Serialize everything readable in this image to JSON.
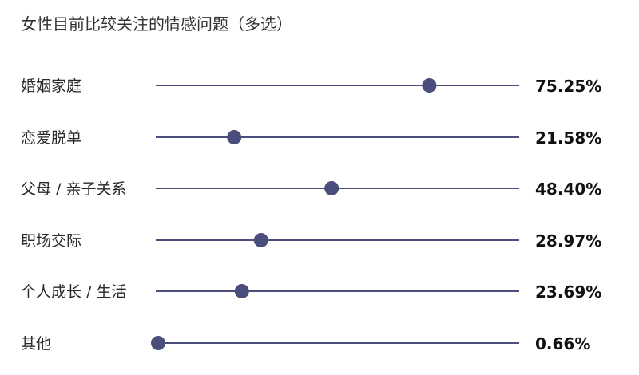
{
  "chart_data": {
    "type": "dot",
    "title": "女性目前比较关注的情感问题（多选）",
    "categories": [
      "婚姻家庭",
      "恋爱脱单",
      "父母 / 亲子关系",
      "职场交际",
      "个人成长 / 生活",
      "其他"
    ],
    "values": [
      75.25,
      21.58,
      48.4,
      28.97,
      23.69,
      0.66
    ],
    "value_labels": [
      "75.25%",
      "21.58%",
      "48.40%",
      "28.97%",
      "23.69%",
      "0.66%"
    ],
    "xlim": [
      0,
      100
    ],
    "unit": "%",
    "grid": false,
    "legend": "none",
    "colors": {
      "line": "#4b4e7c",
      "dot": "#4b4e7c"
    }
  }
}
